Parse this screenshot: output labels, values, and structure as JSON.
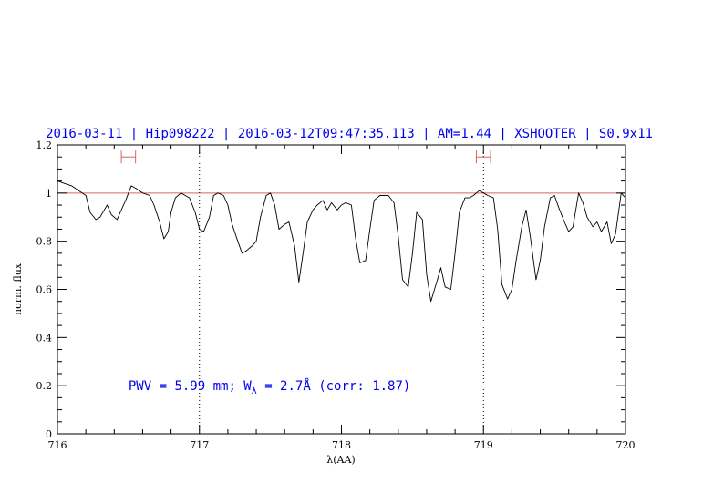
{
  "chart_data": {
    "type": "line",
    "title": "2016-03-11 | Hip098222 | 2016-03-12T09:47:35.113 | AM=1.44 | XSHOOTER | S0.9x11",
    "xlabel": "λ(AA)",
    "ylabel": "norm. flux",
    "xlim": [
      716,
      720
    ],
    "ylim": [
      0,
      1.2
    ],
    "x_ticks": [
      716,
      717,
      718,
      719,
      720
    ],
    "x_tick_labels": [
      "716",
      "717",
      "718",
      "719",
      "720"
    ],
    "y_ticks": [
      0,
      0.2,
      0.4,
      0.6,
      0.8,
      1,
      1.2
    ],
    "y_tick_labels": [
      "0",
      "0.2",
      "0.4",
      "0.6",
      "0.8",
      "1",
      "1.2"
    ],
    "reference_line": {
      "y": 1.0,
      "color": "#e06060"
    },
    "vertical_markers": [
      717.0,
      719.0
    ],
    "ranges": [
      {
        "x_start": 716.45,
        "x_end": 716.55,
        "y": 1.15,
        "color": "#e06060"
      },
      {
        "x_start": 718.95,
        "x_end": 719.05,
        "y": 1.15,
        "color": "#e06060"
      }
    ],
    "annotation": {
      "pwv_text": "PWV = 5.99 mm; W",
      "sub": "λ",
      "rest": " = 2.7Å (corr: 1.87)",
      "x": 716.5,
      "y": 0.2
    },
    "series": [
      {
        "color": "#000000",
        "x": [
          716.0,
          716.05,
          716.1,
          716.15,
          716.2,
          716.23,
          716.27,
          716.3,
          716.35,
          716.38,
          716.42,
          716.45,
          716.48,
          716.52,
          716.55,
          716.6,
          716.65,
          716.68,
          716.72,
          716.75,
          716.78,
          716.8,
          716.83,
          716.87,
          716.9,
          716.93,
          716.97,
          717.0,
          717.03,
          717.07,
          717.1,
          717.13,
          717.17,
          717.2,
          717.23,
          717.27,
          717.3,
          717.33,
          717.37,
          717.4,
          717.43,
          717.47,
          717.5,
          717.53,
          717.56,
          717.6,
          717.63,
          717.67,
          717.7,
          717.73,
          717.76,
          717.8,
          717.83,
          717.87,
          717.9,
          717.93,
          717.97,
          718.0,
          718.03,
          718.07,
          718.1,
          718.13,
          718.17,
          718.2,
          718.23,
          718.27,
          718.3,
          718.33,
          718.37,
          718.4,
          718.43,
          718.47,
          718.5,
          718.53,
          718.57,
          718.6,
          718.63,
          718.67,
          718.7,
          718.73,
          718.77,
          718.8,
          718.83,
          718.87,
          718.9,
          718.93,
          718.97,
          719.0,
          719.03,
          719.07,
          719.1,
          719.13,
          719.17,
          719.2,
          719.23,
          719.27,
          719.3,
          719.33,
          719.37,
          719.4,
          719.43,
          719.47,
          719.5,
          719.53,
          719.57,
          719.6,
          719.63,
          719.67,
          719.7,
          719.73,
          719.77,
          719.8,
          719.83,
          719.87,
          719.9,
          719.93,
          719.97,
          720.0
        ],
        "y": [
          1.05,
          1.04,
          1.03,
          1.01,
          0.99,
          0.92,
          0.89,
          0.9,
          0.95,
          0.91,
          0.89,
          0.93,
          0.97,
          1.03,
          1.02,
          1.0,
          0.99,
          0.95,
          0.88,
          0.81,
          0.84,
          0.92,
          0.98,
          1.0,
          0.99,
          0.98,
          0.92,
          0.85,
          0.84,
          0.9,
          0.99,
          1.0,
          0.99,
          0.95,
          0.87,
          0.8,
          0.75,
          0.76,
          0.78,
          0.8,
          0.9,
          0.99,
          1.0,
          0.95,
          0.85,
          0.87,
          0.88,
          0.78,
          0.63,
          0.75,
          0.88,
          0.93,
          0.95,
          0.97,
          0.93,
          0.96,
          0.93,
          0.95,
          0.96,
          0.95,
          0.81,
          0.71,
          0.72,
          0.85,
          0.97,
          0.99,
          0.99,
          0.99,
          0.96,
          0.82,
          0.64,
          0.61,
          0.75,
          0.92,
          0.89,
          0.66,
          0.55,
          0.63,
          0.69,
          0.61,
          0.6,
          0.75,
          0.92,
          0.98,
          0.98,
          0.99,
          1.01,
          1.0,
          0.99,
          0.98,
          0.85,
          0.62,
          0.56,
          0.6,
          0.72,
          0.86,
          0.93,
          0.82,
          0.64,
          0.72,
          0.86,
          0.98,
          0.99,
          0.94,
          0.88,
          0.84,
          0.86,
          1.0,
          0.96,
          0.9,
          0.86,
          0.88,
          0.84,
          0.88,
          0.79,
          0.83,
          1.0,
          0.98
        ]
      }
    ]
  }
}
